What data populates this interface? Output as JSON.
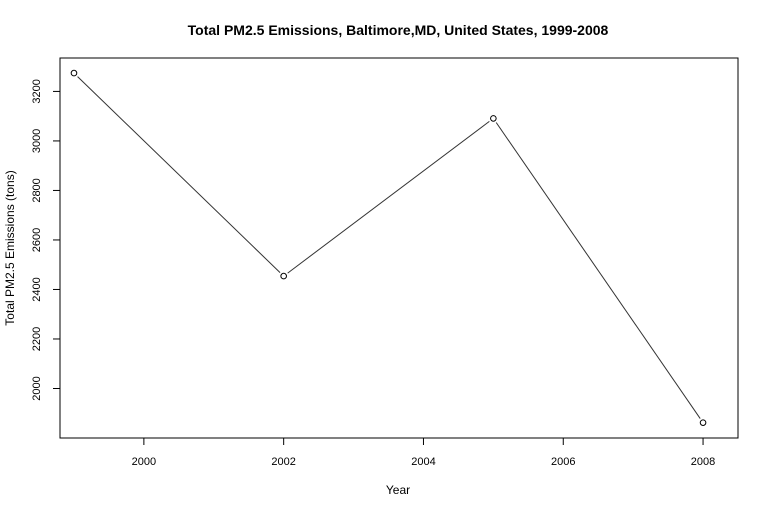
{
  "chart_data": {
    "type": "line",
    "title": "Total PM2.5 Emissions, Baltimore,MD, United States, 1999-2008",
    "xlabel": "Year",
    "ylabel": "Total PM2.5 Emissions (tons)",
    "x": [
      1999,
      2002,
      2005,
      2008
    ],
    "y": [
      3274,
      2454,
      3091,
      1862
    ],
    "xlim": [
      1998.8,
      2008.5
    ],
    "ylim": [
      1800,
      3335
    ],
    "xticks": [
      2000,
      2002,
      2004,
      2006,
      2008
    ],
    "yticks": [
      2000,
      2200,
      2400,
      2600,
      2800,
      3000,
      3200
    ],
    "marker": "open-circle",
    "grid": false,
    "line_color": "#333333"
  }
}
